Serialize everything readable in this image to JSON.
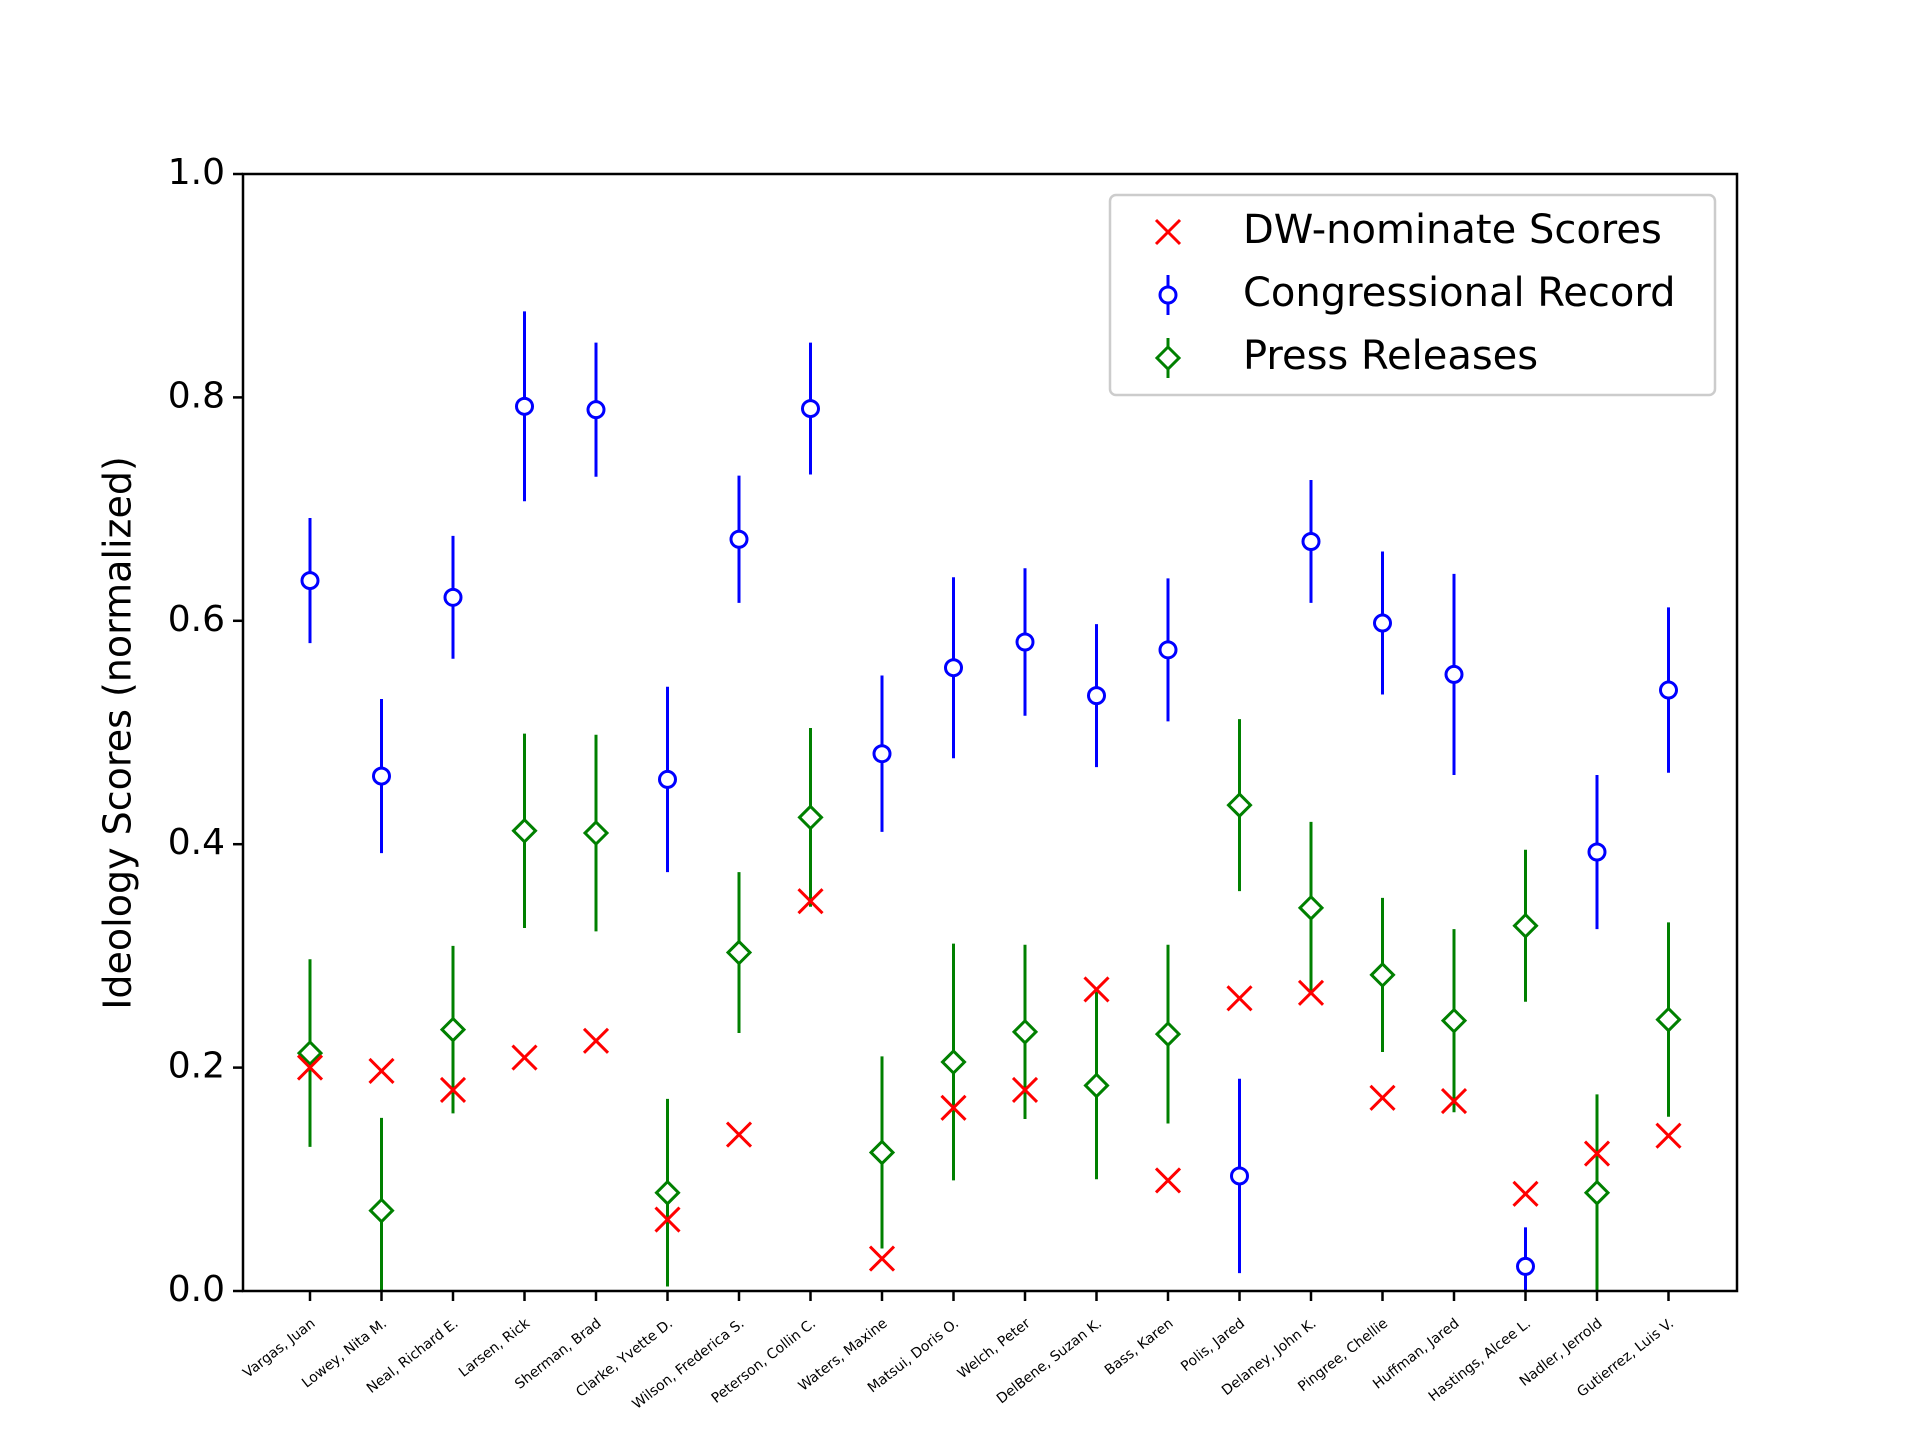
{
  "chart_data": {
    "type": "scatter",
    "ylabel": "Ideology Scores (normalized)",
    "xlabel": "",
    "ylim": [
      0.0,
      1.0
    ],
    "yticks": [
      "0.0",
      "0.2",
      "0.4",
      "0.6",
      "0.8",
      "1.0"
    ],
    "legend_position": "top-right",
    "grid": false,
    "categories": [
      "Vargas, Juan",
      "Lowey, Nita M.",
      "Neal, Richard E.",
      "Larsen, Rick",
      "Sherman, Brad",
      "Clarke, Yvette D.",
      "Wilson, Frederica S.",
      "Peterson, Collin C.",
      "Waters, Maxine",
      "Matsui, Doris O.",
      "Welch, Peter",
      "DelBene, Suzan K.",
      "Bass, Karen",
      "Polis, Jared",
      "Delaney, John K.",
      "Pingree, Chellie",
      "Huffman, Jared",
      "Hastings, Alcee L.",
      "Nadler, Jerrold",
      "Gutierrez, Luis V."
    ],
    "series": [
      {
        "name": "DW-nominate Scores",
        "color": "#ff0000",
        "marker": "x",
        "values": [
          0.2,
          0.197,
          0.18,
          0.209,
          0.224,
          0.064,
          0.14,
          0.349,
          0.029,
          0.164,
          0.18,
          0.27,
          0.099,
          0.262,
          0.267,
          0.173,
          0.17,
          0.087,
          0.123,
          0.139
        ]
      },
      {
        "name": "Congressional Record",
        "color": "#0000ff",
        "marker": "o",
        "values": [
          0.636,
          0.461,
          0.621,
          0.792,
          0.789,
          0.458,
          0.673,
          0.79,
          0.481,
          0.558,
          0.581,
          0.533,
          0.574,
          0.103,
          0.671,
          0.598,
          0.552,
          0.022,
          0.393,
          0.538
        ],
        "errors": [
          0.056,
          0.069,
          0.055,
          0.085,
          0.06,
          0.083,
          0.057,
          0.059,
          0.07,
          0.081,
          0.066,
          0.064,
          0.064,
          0.087,
          0.055,
          0.064,
          0.09,
          0.035,
          0.069,
          0.074
        ]
      },
      {
        "name": "Press Releases",
        "color": "#008000",
        "marker": "D",
        "values": [
          0.213,
          0.072,
          0.234,
          0.412,
          0.41,
          0.088,
          0.303,
          0.424,
          0.124,
          0.205,
          0.232,
          0.184,
          0.23,
          0.435,
          0.343,
          0.283,
          0.242,
          0.327,
          0.088,
          0.243
        ],
        "errors": [
          0.084,
          0.083,
          0.075,
          0.087,
          0.088,
          0.084,
          0.072,
          0.08,
          0.086,
          0.106,
          0.078,
          0.084,
          0.08,
          0.077,
          0.077,
          0.069,
          0.082,
          0.068,
          0.088,
          0.087
        ]
      }
    ]
  }
}
